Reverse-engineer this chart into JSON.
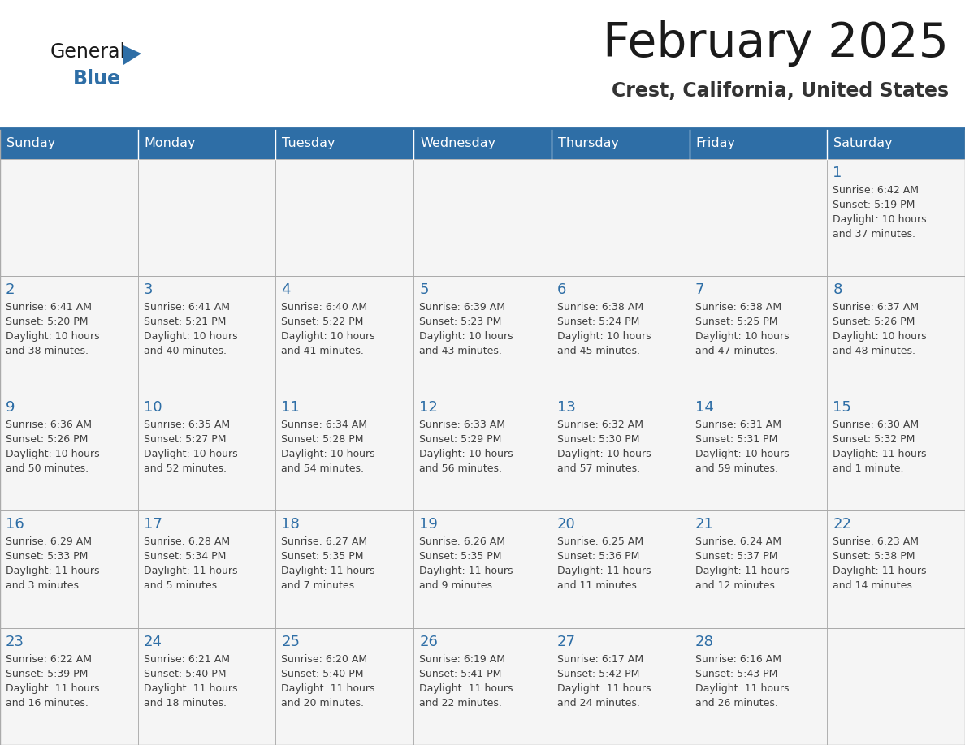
{
  "title": "February 2025",
  "subtitle": "Crest, California, United States",
  "days_of_week": [
    "Sunday",
    "Monday",
    "Tuesday",
    "Wednesday",
    "Thursday",
    "Friday",
    "Saturday"
  ],
  "header_bg": "#2E6EA6",
  "header_text": "#FFFFFF",
  "cell_bg": "#F5F5F5",
  "day_num_color": "#2E6EA6",
  "text_color": "#404040",
  "border_color": "#AAAAAA",
  "title_color": "#1A1A1A",
  "subtitle_color": "#333333",
  "logo_general_color": "#1A1A1A",
  "logo_blue_color": "#2E6EA6",
  "calendar_data": [
    [
      {
        "day": null,
        "info": ""
      },
      {
        "day": null,
        "info": ""
      },
      {
        "day": null,
        "info": ""
      },
      {
        "day": null,
        "info": ""
      },
      {
        "day": null,
        "info": ""
      },
      {
        "day": null,
        "info": ""
      },
      {
        "day": 1,
        "info": "Sunrise: 6:42 AM\nSunset: 5:19 PM\nDaylight: 10 hours\nand 37 minutes."
      }
    ],
    [
      {
        "day": 2,
        "info": "Sunrise: 6:41 AM\nSunset: 5:20 PM\nDaylight: 10 hours\nand 38 minutes."
      },
      {
        "day": 3,
        "info": "Sunrise: 6:41 AM\nSunset: 5:21 PM\nDaylight: 10 hours\nand 40 minutes."
      },
      {
        "day": 4,
        "info": "Sunrise: 6:40 AM\nSunset: 5:22 PM\nDaylight: 10 hours\nand 41 minutes."
      },
      {
        "day": 5,
        "info": "Sunrise: 6:39 AM\nSunset: 5:23 PM\nDaylight: 10 hours\nand 43 minutes."
      },
      {
        "day": 6,
        "info": "Sunrise: 6:38 AM\nSunset: 5:24 PM\nDaylight: 10 hours\nand 45 minutes."
      },
      {
        "day": 7,
        "info": "Sunrise: 6:38 AM\nSunset: 5:25 PM\nDaylight: 10 hours\nand 47 minutes."
      },
      {
        "day": 8,
        "info": "Sunrise: 6:37 AM\nSunset: 5:26 PM\nDaylight: 10 hours\nand 48 minutes."
      }
    ],
    [
      {
        "day": 9,
        "info": "Sunrise: 6:36 AM\nSunset: 5:26 PM\nDaylight: 10 hours\nand 50 minutes."
      },
      {
        "day": 10,
        "info": "Sunrise: 6:35 AM\nSunset: 5:27 PM\nDaylight: 10 hours\nand 52 minutes."
      },
      {
        "day": 11,
        "info": "Sunrise: 6:34 AM\nSunset: 5:28 PM\nDaylight: 10 hours\nand 54 minutes."
      },
      {
        "day": 12,
        "info": "Sunrise: 6:33 AM\nSunset: 5:29 PM\nDaylight: 10 hours\nand 56 minutes."
      },
      {
        "day": 13,
        "info": "Sunrise: 6:32 AM\nSunset: 5:30 PM\nDaylight: 10 hours\nand 57 minutes."
      },
      {
        "day": 14,
        "info": "Sunrise: 6:31 AM\nSunset: 5:31 PM\nDaylight: 10 hours\nand 59 minutes."
      },
      {
        "day": 15,
        "info": "Sunrise: 6:30 AM\nSunset: 5:32 PM\nDaylight: 11 hours\nand 1 minute."
      }
    ],
    [
      {
        "day": 16,
        "info": "Sunrise: 6:29 AM\nSunset: 5:33 PM\nDaylight: 11 hours\nand 3 minutes."
      },
      {
        "day": 17,
        "info": "Sunrise: 6:28 AM\nSunset: 5:34 PM\nDaylight: 11 hours\nand 5 minutes."
      },
      {
        "day": 18,
        "info": "Sunrise: 6:27 AM\nSunset: 5:35 PM\nDaylight: 11 hours\nand 7 minutes."
      },
      {
        "day": 19,
        "info": "Sunrise: 6:26 AM\nSunset: 5:35 PM\nDaylight: 11 hours\nand 9 minutes."
      },
      {
        "day": 20,
        "info": "Sunrise: 6:25 AM\nSunset: 5:36 PM\nDaylight: 11 hours\nand 11 minutes."
      },
      {
        "day": 21,
        "info": "Sunrise: 6:24 AM\nSunset: 5:37 PM\nDaylight: 11 hours\nand 12 minutes."
      },
      {
        "day": 22,
        "info": "Sunrise: 6:23 AM\nSunset: 5:38 PM\nDaylight: 11 hours\nand 14 minutes."
      }
    ],
    [
      {
        "day": 23,
        "info": "Sunrise: 6:22 AM\nSunset: 5:39 PM\nDaylight: 11 hours\nand 16 minutes."
      },
      {
        "day": 24,
        "info": "Sunrise: 6:21 AM\nSunset: 5:40 PM\nDaylight: 11 hours\nand 18 minutes."
      },
      {
        "day": 25,
        "info": "Sunrise: 6:20 AM\nSunset: 5:40 PM\nDaylight: 11 hours\nand 20 minutes."
      },
      {
        "day": 26,
        "info": "Sunrise: 6:19 AM\nSunset: 5:41 PM\nDaylight: 11 hours\nand 22 minutes."
      },
      {
        "day": 27,
        "info": "Sunrise: 6:17 AM\nSunset: 5:42 PM\nDaylight: 11 hours\nand 24 minutes."
      },
      {
        "day": 28,
        "info": "Sunrise: 6:16 AM\nSunset: 5:43 PM\nDaylight: 11 hours\nand 26 minutes."
      },
      {
        "day": null,
        "info": ""
      }
    ]
  ]
}
